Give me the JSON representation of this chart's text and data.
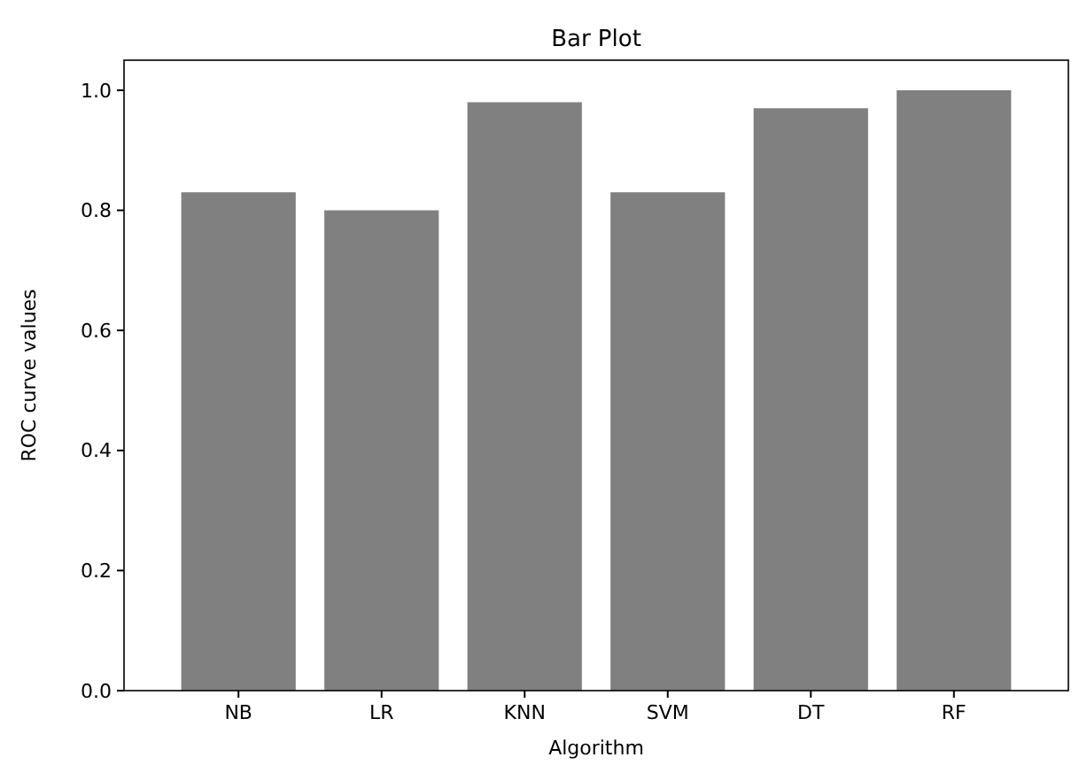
{
  "chart_data": {
    "type": "bar",
    "title": "Bar Plot",
    "xlabel": "Algorithm",
    "ylabel": "ROC curve values",
    "categories": [
      "NB",
      "LR",
      "KNN",
      "SVM",
      "DT",
      "RF"
    ],
    "values": [
      0.83,
      0.8,
      0.98,
      0.83,
      0.97,
      1.0
    ],
    "color": "#808080",
    "ylim": [
      0,
      1.05
    ],
    "yticks": [
      {
        "value": 0,
        "label": "0.0"
      },
      {
        "value": 0.2,
        "label": "0.2"
      },
      {
        "value": 0.4,
        "label": "0.4"
      },
      {
        "value": 0.6,
        "label": "0.6"
      },
      {
        "value": 0.8,
        "label": "0.8"
      },
      {
        "value": 1,
        "label": "1.0"
      }
    ],
    "grid": false
  }
}
